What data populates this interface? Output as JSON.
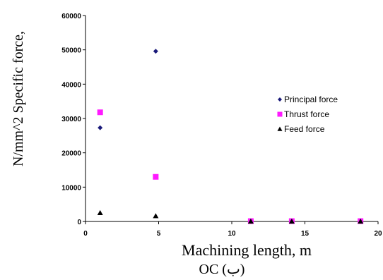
{
  "chart_data": {
    "type": "scatter",
    "title": "",
    "xlabel": "Machining length, m",
    "ylabel": "N/mm^2 Specific force,",
    "subtitle": "OC (ب)",
    "xlim": [
      0,
      20
    ],
    "ylim": [
      0,
      60000
    ],
    "xticks": [
      "0",
      "5",
      "10",
      "15",
      "20"
    ],
    "yticks": [
      "0",
      "10000",
      "20000",
      "30000",
      "40000",
      "50000",
      "60000"
    ],
    "grid": false,
    "legend_position": "right",
    "series": [
      {
        "name": "Principal force",
        "marker": "diamond",
        "color": "#1a1a7a",
        "points": [
          {
            "x": 1.0,
            "y": 27300
          },
          {
            "x": 4.8,
            "y": 49600
          }
        ]
      },
      {
        "name": "Thrust force",
        "marker": "square",
        "color": "#ff1aff",
        "points": [
          {
            "x": 1.0,
            "y": 31800
          },
          {
            "x": 4.8,
            "y": 13000
          },
          {
            "x": 11.3,
            "y": 100
          },
          {
            "x": 14.1,
            "y": 100
          },
          {
            "x": 18.8,
            "y": 100
          }
        ]
      },
      {
        "name": "Feed force",
        "marker": "triangle",
        "color": "#000000",
        "points": [
          {
            "x": 1.0,
            "y": 2500
          },
          {
            "x": 4.8,
            "y": 1600
          },
          {
            "x": 11.3,
            "y": 50
          },
          {
            "x": 14.1,
            "y": 50
          },
          {
            "x": 18.8,
            "y": 50
          }
        ]
      }
    ]
  }
}
